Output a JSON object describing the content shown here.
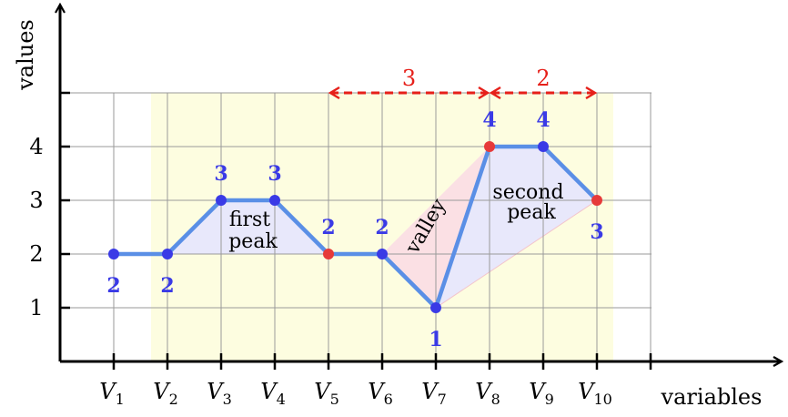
{
  "chart_data": {
    "type": "line",
    "x_axis_label": "variables",
    "y_axis_label": "values",
    "y_ticks": [
      "1",
      "2",
      "3",
      "4"
    ],
    "ylim": [
      0,
      5
    ],
    "grid": true,
    "categories": [
      {
        "base": "V",
        "sub": "1"
      },
      {
        "base": "V",
        "sub": "2"
      },
      {
        "base": "V",
        "sub": "3"
      },
      {
        "base": "V",
        "sub": "4"
      },
      {
        "base": "V",
        "sub": "5"
      },
      {
        "base": "V",
        "sub": "6"
      },
      {
        "base": "V",
        "sub": "7"
      },
      {
        "base": "V",
        "sub": "8"
      },
      {
        "base": "V",
        "sub": "9"
      },
      {
        "base": "V",
        "sub": "10"
      }
    ],
    "values": [
      2,
      2,
      3,
      3,
      2,
      2,
      1,
      4,
      4,
      3
    ],
    "point_labels": [
      "2",
      "2",
      "3",
      "3",
      "2",
      "2",
      "1",
      "4",
      "4",
      "3"
    ],
    "label_positions": [
      "below",
      "below",
      "above",
      "above",
      "above",
      "above",
      "below",
      "above",
      "above",
      "below"
    ],
    "highlight_points": [
      5,
      8,
      10
    ],
    "regions": {
      "first_peak": {
        "lines": [
          "first",
          "peak"
        ]
      },
      "valley": {
        "text": "valley"
      },
      "second_peak": {
        "lines": [
          "second",
          "peak"
        ]
      }
    },
    "spans": [
      {
        "from": 5,
        "to": 8,
        "label": "3"
      },
      {
        "from": 8,
        "to": 10,
        "label": "2"
      }
    ],
    "colors": {
      "line": "#5a8fe6",
      "point": "#3a3ae6",
      "point_label": "#3a3ae6",
      "highlight": "#e63a3a",
      "span": "#e6201a",
      "background_band": "#fdfde0",
      "peak_fill": "#e8e8fb",
      "valley_fill": "#fbe0e4",
      "grid": "#9a9a9a"
    }
  }
}
